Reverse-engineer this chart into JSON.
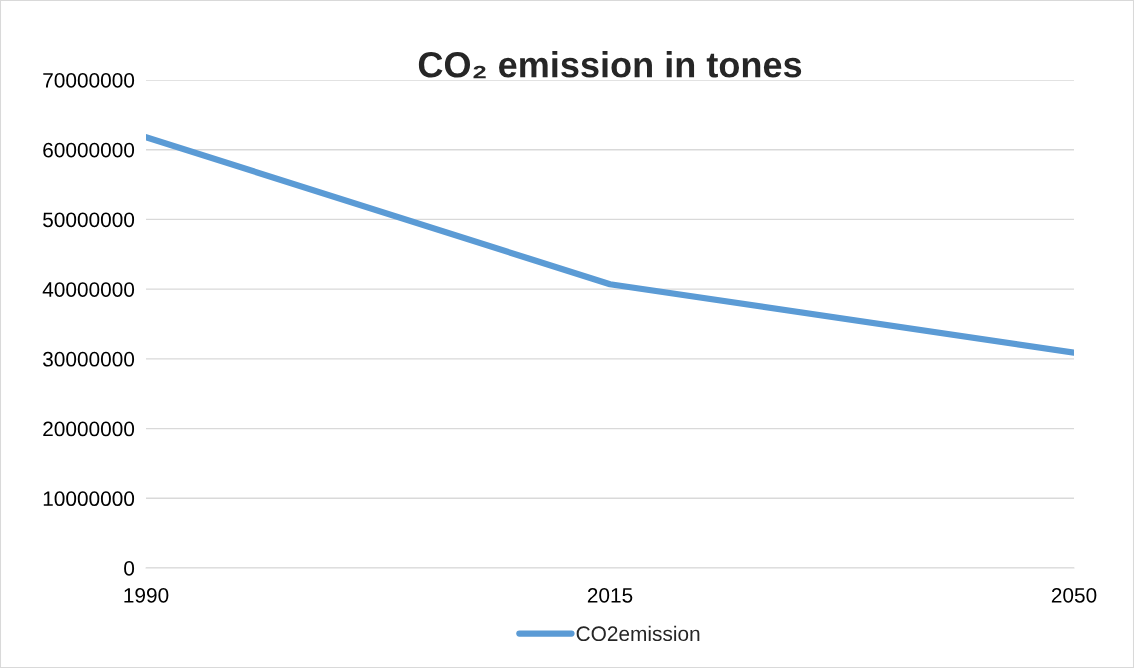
{
  "chart_data": {
    "type": "line",
    "title": "CO₂ emission in tones",
    "categories": [
      "1990",
      "2015",
      "2050"
    ],
    "series": [
      {
        "name": "CO2emission",
        "color": "#5b9bd5",
        "values": [
          61800000,
          40700000,
          30900000
        ]
      }
    ],
    "ylim": [
      0,
      70000000
    ],
    "yticks": [
      0,
      10000000,
      20000000,
      30000000,
      40000000,
      50000000,
      60000000,
      70000000
    ],
    "grid": "y",
    "legend": "bottom",
    "marker": "none",
    "line_style": "solid"
  }
}
